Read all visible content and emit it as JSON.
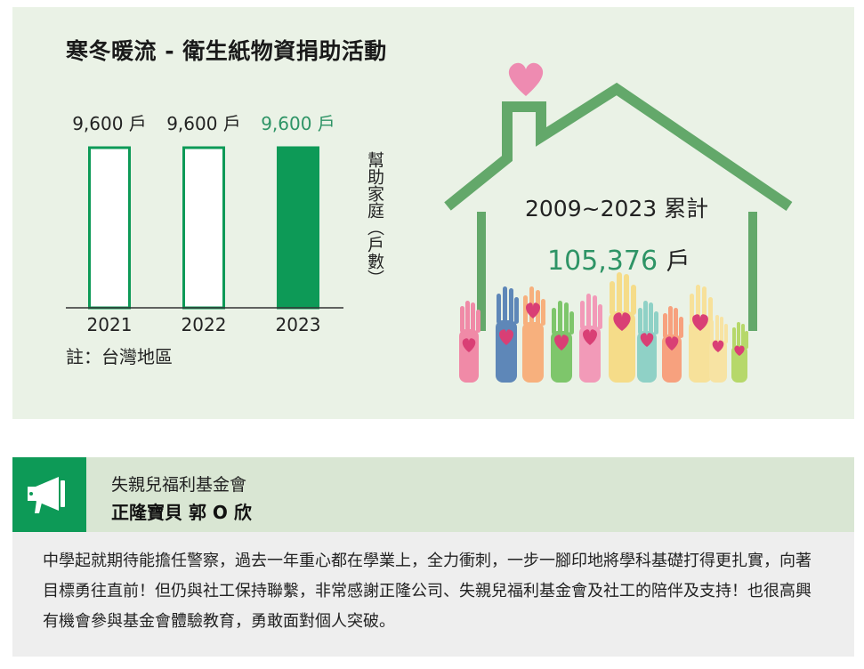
{
  "chart_data": {
    "type": "bar",
    "title": "寒冬暖流 - 衛生紙物資捐助活動",
    "categories": [
      "2021",
      "2022",
      "2023"
    ],
    "values": [
      9600,
      9600,
      9600
    ],
    "value_labels": [
      "9,600 戶",
      "9,600 戶",
      "9,600 戶"
    ],
    "ylabel": "幫助家庭（戶數）",
    "note": "註：台灣地區",
    "highlight_color": "#0d9a57"
  },
  "summary": {
    "period": "2009~2023 累計",
    "total": "105,376",
    "unit": "戶"
  },
  "testimonial": {
    "organization": "失親兒福利基金會",
    "person": "正隆寶貝 郭 O 欣",
    "icon": "megaphone-icon",
    "quote": "中學起就期待能擔任警察，過去一年重心都在學業上，全力衝刺，一步一腳印地將學科基礎打得更扎實，向著目標勇往直前！但仍與社工保持聯繫，非常感謝正隆公司、失親兒福利基金會及社工的陪伴及支持！也很高興有機會參與基金會體驗教育，勇敢面對個人突破。"
  }
}
